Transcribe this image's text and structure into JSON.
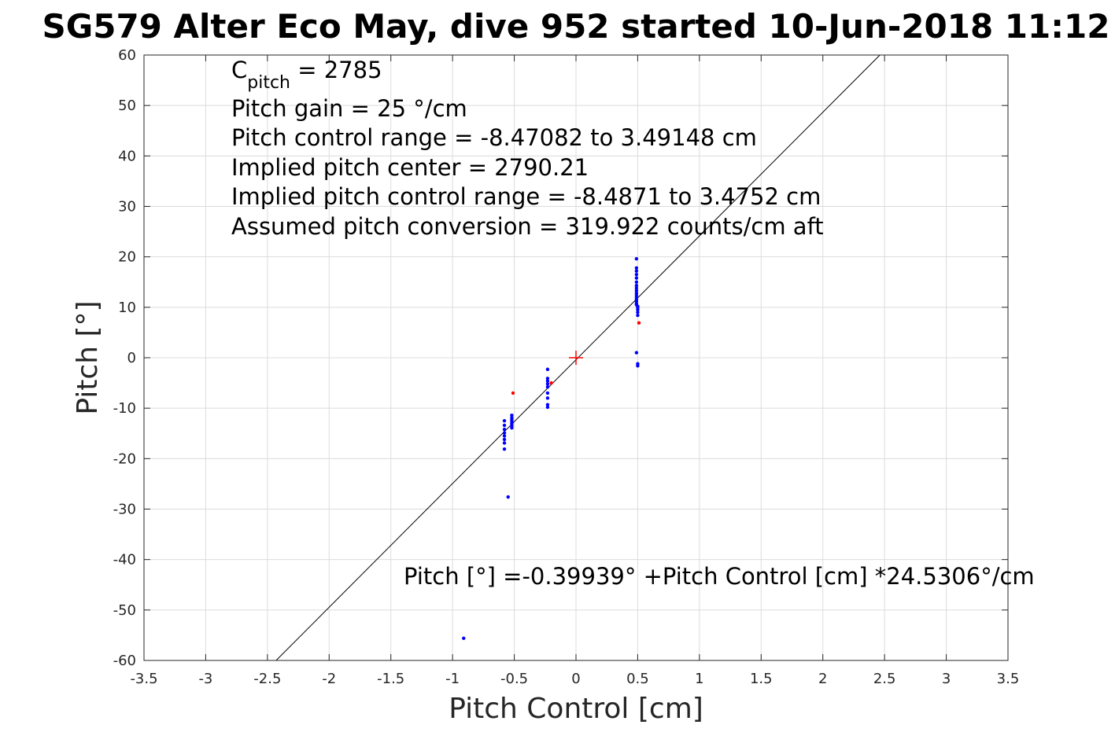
{
  "chart_data": {
    "type": "scatter",
    "title": "SG579 Alter Eco May, dive 952 started 10-Jun-2018 11:12",
    "xlabel": "Pitch Control [cm]",
    "ylabel": "Pitch [°]",
    "xlim": [
      -3.5,
      3.5
    ],
    "ylim": [
      -60,
      60
    ],
    "xticks": [
      -3.5,
      -3,
      -2.5,
      -2,
      -1.5,
      -1,
      -0.5,
      0,
      0.5,
      1,
      1.5,
      2,
      2.5,
      3,
      3.5
    ],
    "yticks": [
      -60,
      -50,
      -40,
      -30,
      -20,
      -10,
      0,
      10,
      20,
      30,
      40,
      50,
      60
    ],
    "xtick_labels": [
      "-3.5",
      "-3",
      "-2.5",
      "-2",
      "-1.5",
      "-1",
      "-0.5",
      "0",
      "0.5",
      "1",
      "1.5",
      "2",
      "2.5",
      "3",
      "3.5"
    ],
    "ytick_labels": [
      "-60",
      "-50",
      "-40",
      "-30",
      "-20",
      "-10",
      "0",
      "10",
      "20",
      "30",
      "40",
      "50",
      "60"
    ],
    "grid": true,
    "fit_line": {
      "intercept": -0.39939,
      "slope": 24.5306
    },
    "center_marker": {
      "x": 0,
      "y": 0,
      "color": "#ff0000"
    },
    "series": [
      {
        "color": "#0000ff",
        "points": [
          [
            0.49,
            19.6
          ],
          [
            0.49,
            17.8
          ],
          [
            0.49,
            17.2
          ],
          [
            0.49,
            16.5
          ],
          [
            0.49,
            15.8
          ],
          [
            0.49,
            15.0
          ],
          [
            0.49,
            14.3
          ],
          [
            0.49,
            13.8
          ],
          [
            0.49,
            13.3
          ],
          [
            0.49,
            12.8
          ],
          [
            0.49,
            12.4
          ],
          [
            0.49,
            12.0
          ],
          [
            0.49,
            11.6
          ],
          [
            0.49,
            11.2
          ],
          [
            0.49,
            10.8
          ],
          [
            0.49,
            10.5
          ],
          [
            0.5,
            10.2
          ],
          [
            0.5,
            9.9
          ],
          [
            0.5,
            9.5
          ],
          [
            0.5,
            9.0
          ],
          [
            0.5,
            8.4
          ],
          [
            0.49,
            1.0
          ],
          [
            0.5,
            -1.2
          ],
          [
            0.5,
            -1.6
          ],
          [
            -0.23,
            -2.3
          ],
          [
            -0.23,
            -4.1
          ],
          [
            -0.23,
            -4.6
          ],
          [
            -0.23,
            -5.2
          ],
          [
            -0.23,
            -5.8
          ],
          [
            -0.23,
            -7.0
          ],
          [
            -0.23,
            -8.0
          ],
          [
            -0.23,
            -9.3
          ],
          [
            -0.23,
            -9.8
          ],
          [
            -0.52,
            -11.4
          ],
          [
            -0.52,
            -11.9
          ],
          [
            -0.52,
            -12.3
          ],
          [
            -0.52,
            -12.7
          ],
          [
            -0.52,
            -13.1
          ],
          [
            -0.52,
            -13.5
          ],
          [
            -0.52,
            -13.9
          ],
          [
            -0.58,
            -12.5
          ],
          [
            -0.58,
            -13.4
          ],
          [
            -0.58,
            -14.2
          ],
          [
            -0.58,
            -14.9
          ],
          [
            -0.58,
            -15.5
          ],
          [
            -0.58,
            -16.2
          ],
          [
            -0.58,
            -16.9
          ],
          [
            -0.58,
            -18.1
          ],
          [
            -0.55,
            -27.6
          ],
          [
            -0.91,
            -55.6
          ]
        ]
      },
      {
        "color": "#ff0000",
        "points": [
          [
            0.51,
            6.9
          ],
          [
            -0.51,
            -7.0
          ],
          [
            -0.2,
            -5.0
          ]
        ]
      }
    ]
  },
  "annotations": {
    "c_pitch_prefix": "C",
    "c_pitch_sub": "pitch",
    "c_pitch_value": " = 2785",
    "pitch_gain": "Pitch gain = 25 °/cm",
    "control_range": "Pitch control range = -8.47082 to 3.49148 cm",
    "implied_center": "Implied pitch center = 2790.21",
    "implied_range": "Implied pitch control range = -8.4871 to 3.4752 cm",
    "conversion": "Assumed pitch conversion = 319.922 counts/cm aft",
    "fit_equation": "Pitch [°] =-0.39939° +Pitch Control [cm] *24.5306°/cm"
  }
}
